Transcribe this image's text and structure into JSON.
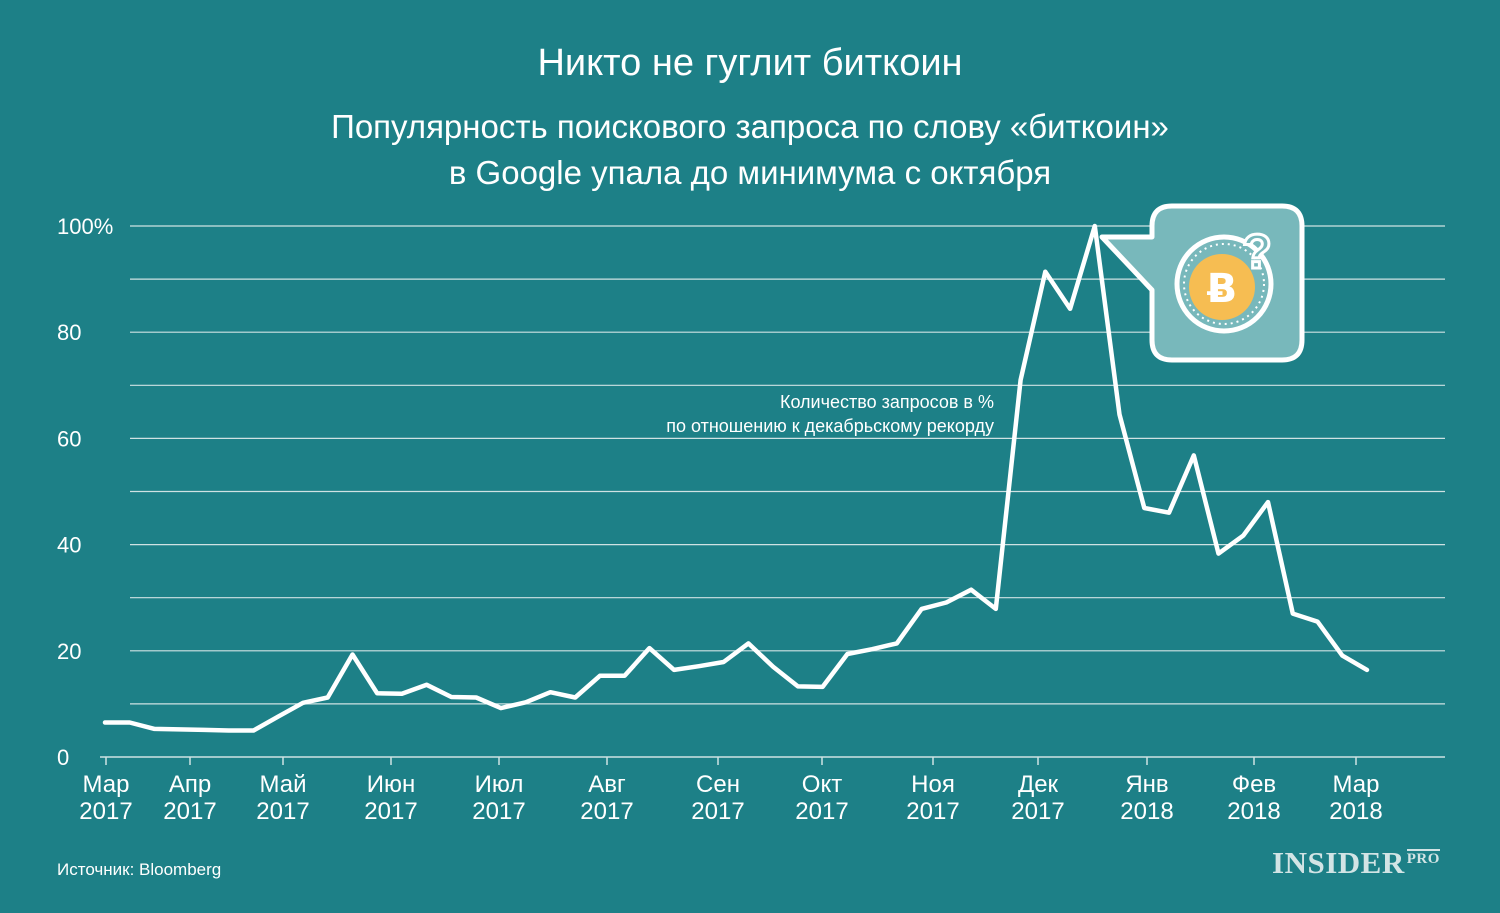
{
  "header": {
    "title": "Никто не гуглит биткоин",
    "subtitle_line1": "Популярность поискового запроса по слову «биткоин»",
    "subtitle_line2": "в Google упала до минимума с октября"
  },
  "footer": {
    "source": "Источник: Bloomberg",
    "brand": "INSIDER",
    "brand_suffix": "PRO"
  },
  "colors": {
    "background": "#1d8087",
    "line": "#ffffff",
    "gridline": "#cfe2e3",
    "coin": "#f6bd52",
    "bubble_fill": "#78b8bb"
  },
  "icon": "bitcoin-question-bubble-icon",
  "chart_data": {
    "type": "line",
    "title": "Никто не гуглит биткоин",
    "annotation_line1": "Количество запросов в %",
    "annotation_line2": "по отношению к декабрьскому рекорду",
    "yticks": [
      "100%",
      "80",
      "60",
      "40",
      "20",
      "0"
    ],
    "ylim": [
      0,
      100
    ],
    "grid": true,
    "x_ticks": [
      {
        "month": "Мар",
        "year": "2017"
      },
      {
        "month": "Апр",
        "year": "2017"
      },
      {
        "month": "Май",
        "year": "2017"
      },
      {
        "month": "Июн",
        "year": "2017"
      },
      {
        "month": "Июл",
        "year": "2017"
      },
      {
        "month": "Авг",
        "year": "2017"
      },
      {
        "month": "Сен",
        "year": "2017"
      },
      {
        "month": "Окт",
        "year": "2017"
      },
      {
        "month": "Ноя",
        "year": "2017"
      },
      {
        "month": "Дек",
        "year": "2017"
      },
      {
        "month": "Янв",
        "year": "2018"
      },
      {
        "month": "Фев",
        "year": "2018"
      },
      {
        "month": "Мар",
        "year": "2018"
      }
    ],
    "series": [
      {
        "values": [
          6.5,
          6.5,
          5.3,
          5.2,
          5.1,
          5.0,
          5.0,
          7.6,
          10.2,
          11.2,
          19.3,
          12.0,
          11.9,
          13.6,
          11.3,
          11.2,
          9.2,
          10.3,
          12.2,
          11.2,
          15.3,
          15.3,
          20.5,
          16.4,
          17.1,
          17.9,
          21.4,
          17.0,
          13.3,
          13.2,
          19.4,
          20.3,
          21.4,
          27.9,
          29.1,
          31.5,
          27.9,
          71.0,
          91.4,
          84.4,
          100.0,
          64.5,
          46.9,
          46.0,
          56.8,
          38.3,
          41.7,
          48.0,
          27.0,
          25.5,
          19.1,
          16.4
        ]
      }
    ]
  }
}
